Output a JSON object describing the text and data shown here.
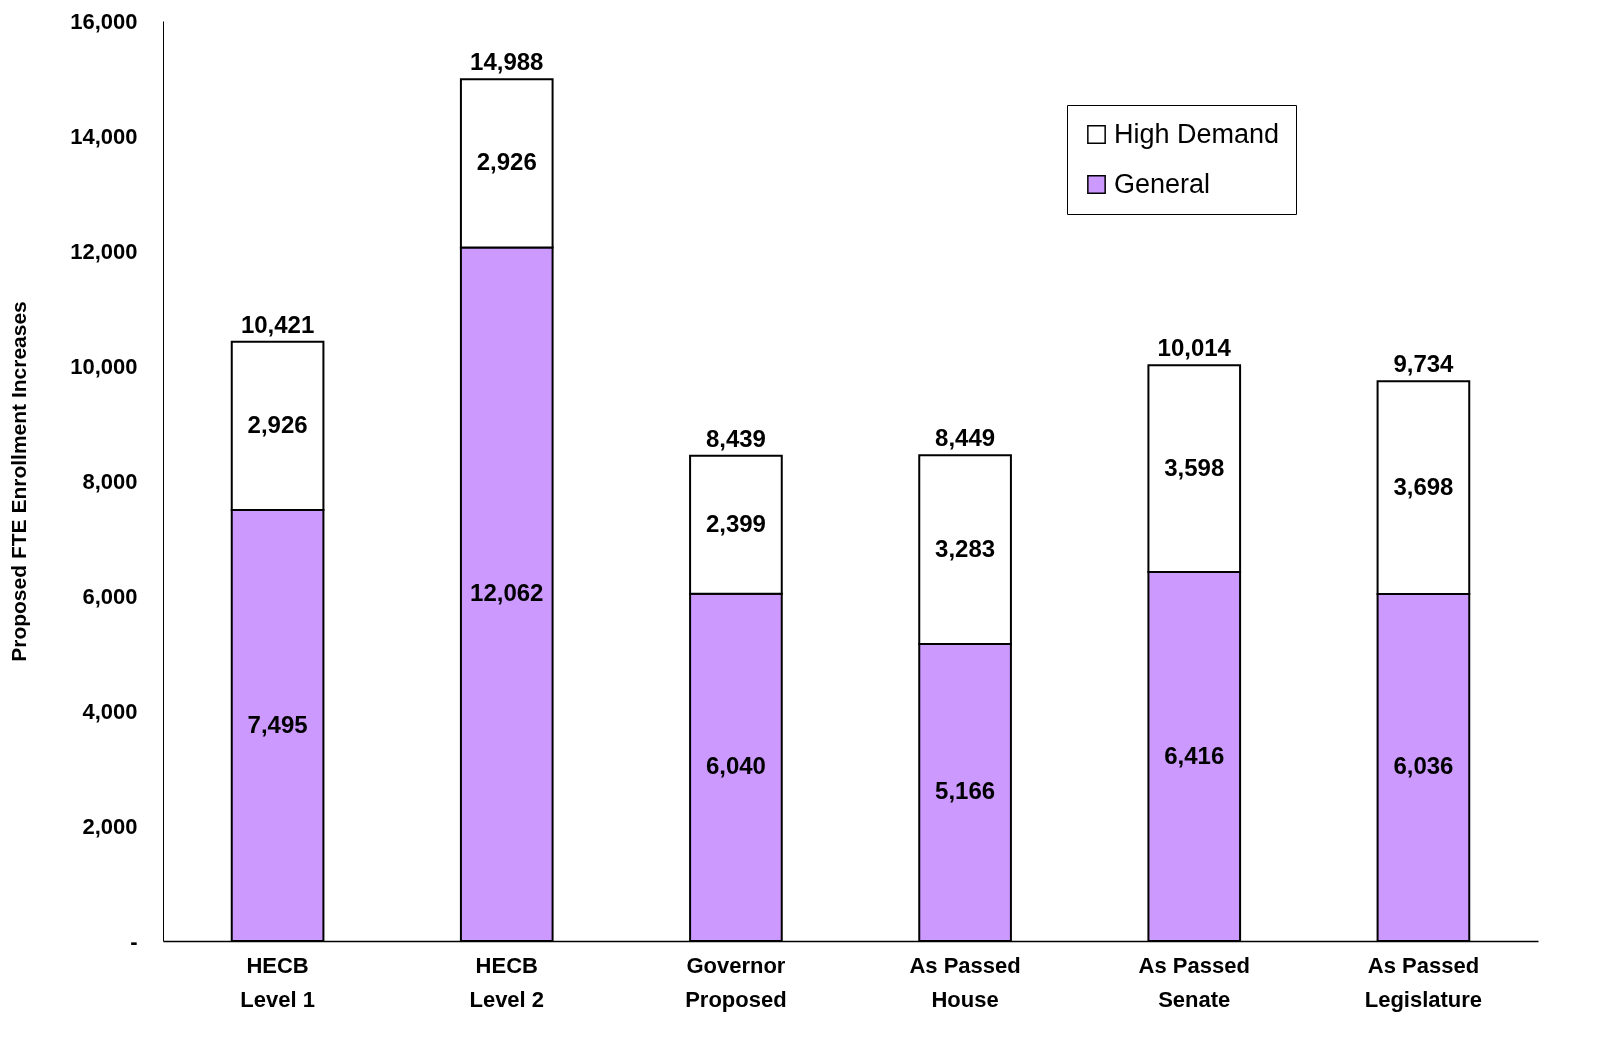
{
  "chart_data": {
    "type": "bar",
    "ylabel": "Proposed FTE Enrollment Increases",
    "categories": [
      "HECB Level 1",
      "HECB Level 2",
      "Governor Proposed",
      "As Passed House",
      "As Passed Senate",
      "As Passed Legislature"
    ],
    "stacked": true,
    "series": [
      {
        "name": "General",
        "color": "#cc99ff",
        "values": [
          7495,
          12062,
          6040,
          5166,
          6416,
          6036
        ],
        "value_labels": [
          "7,495",
          "12,062",
          "6,040",
          "5,166",
          "6,416",
          "6,036"
        ]
      },
      {
        "name": "High Demand",
        "color": "#ffffff",
        "values": [
          2926,
          2926,
          2399,
          3283,
          3598,
          3698
        ],
        "value_labels": [
          "2,926",
          "2,926",
          "2,399",
          "3,283",
          "3,598",
          "3,698"
        ]
      }
    ],
    "ylim": [
      0,
      16000
    ],
    "yticks": [
      {
        "value": 0,
        "label": "-"
      },
      {
        "value": 2000,
        "label": "2,000"
      },
      {
        "value": 4000,
        "label": "4,000"
      },
      {
        "value": 6000,
        "label": "6,000"
      },
      {
        "value": 8000,
        "label": "8,000"
      },
      {
        "value": 10000,
        "label": "10,000"
      },
      {
        "value": 12000,
        "label": "12,000"
      },
      {
        "value": 14000,
        "label": "14,000"
      },
      {
        "value": 16000,
        "label": "16,000"
      }
    ],
    "totals": [
      "10,421",
      "14,988",
      "8,439",
      "8,449",
      "10,014",
      "9,734"
    ],
    "grid": false,
    "legend": "top right"
  }
}
